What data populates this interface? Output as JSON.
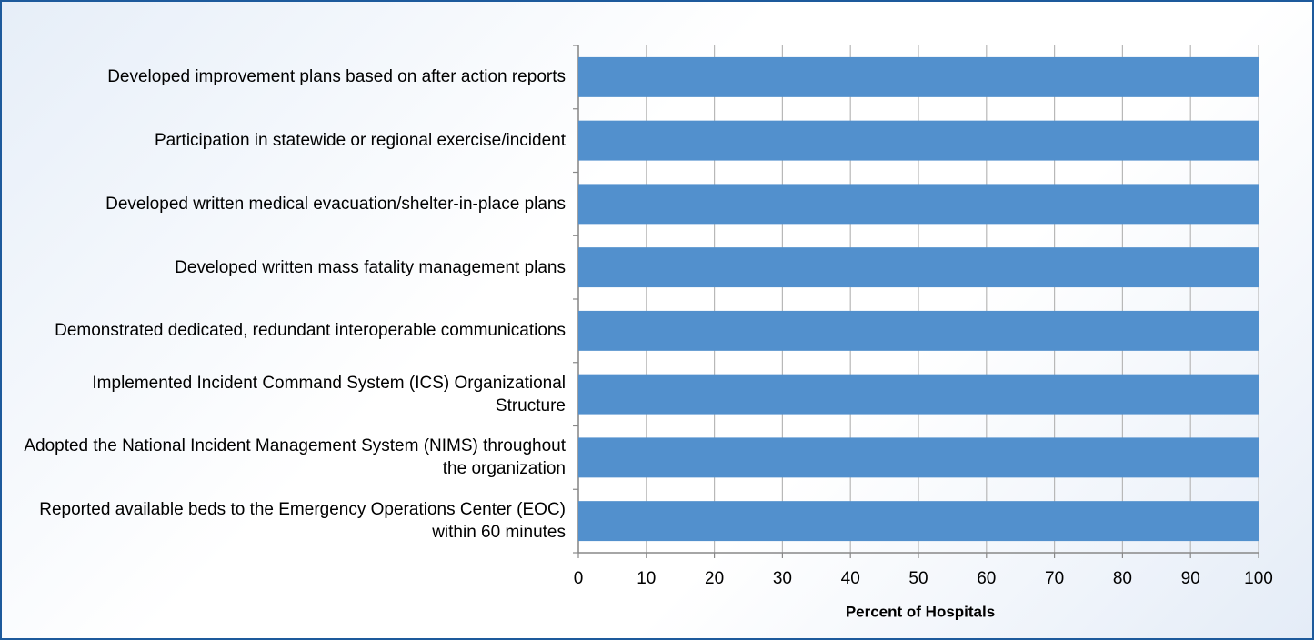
{
  "chart_data": {
    "type": "bar",
    "orientation": "horizontal",
    "categories": [
      "Developed improvement plans based on after action reports",
      "Participation in statewide or regional exercise/incident",
      "Developed written medical evacuation/shelter-in-place plans",
      "Developed written mass fatality management plans",
      "Demonstrated dedicated, redundant interoperable communications",
      "Implemented Incident Command System (ICS) Organizational Structure",
      "Adopted the National Incident Management System (NIMS) throughout the organization",
      "Reported available beds to the Emergency Operations Center (EOC) within 60 minutes"
    ],
    "values": [
      100,
      100,
      100,
      100,
      100,
      100,
      100,
      100
    ],
    "color": "#5290cd",
    "xlabel": "Percent of Hospitals",
    "xlim": [
      0,
      100
    ],
    "xticks": [
      0,
      10,
      20,
      30,
      40,
      50,
      60,
      70,
      80,
      90,
      100
    ],
    "grid": true
  }
}
